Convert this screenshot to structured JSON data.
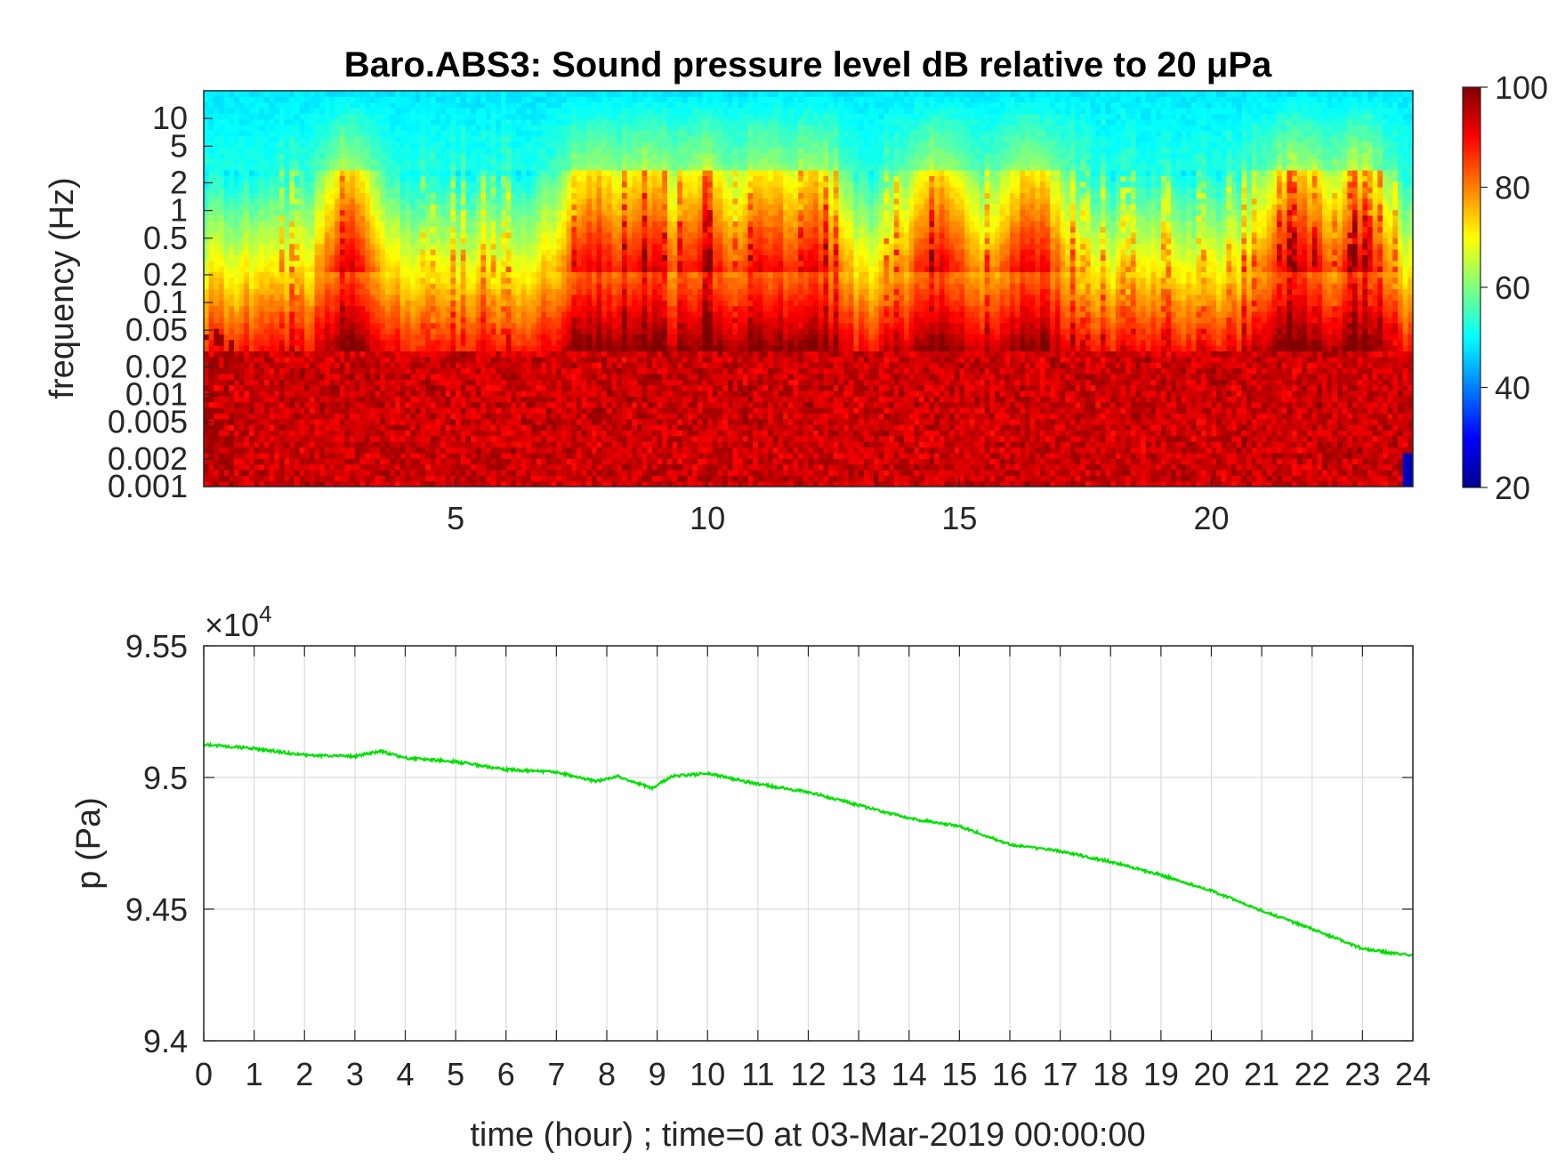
{
  "chart_data": [
    {
      "type": "heatmap",
      "title": "Baro.ABS3: Sound pressure level dB relative to 20 μPa",
      "ylabel": "frequency (Hz)",
      "yscale": "log",
      "xlim": [
        0,
        24
      ],
      "ylim": [
        0.001,
        20
      ],
      "x_ticks": [
        5,
        10,
        15,
        20
      ],
      "y_ticks": [
        "10",
        "5",
        "2",
        "1",
        "0.5",
        "0.2",
        "0.1",
        "0.05",
        "0.02",
        "0.01",
        "0.005",
        "0.002",
        "0.001"
      ],
      "y_tick_values": [
        10,
        5,
        2,
        1,
        0.5,
        0.2,
        0.1,
        0.05,
        0.02,
        0.01,
        0.005,
        0.002,
        0.001
      ],
      "colormap": "jet",
      "colorbar": {
        "ticks": [
          20,
          40,
          60,
          80,
          100
        ],
        "range": [
          20,
          100
        ]
      },
      "colors": {
        "low": "#00008f",
        "mid": "#7fff7f",
        "high": "#800000"
      },
      "level_description": "high levels (80-100 dB) at low frequencies below ~0.05 Hz, decreasing to ~50 dB above 2 Hz; broadband bursts near hours 3, 8-12, 14-17 and 21-23"
    },
    {
      "type": "line",
      "ylabel": "p (Pa)",
      "xlabel": "time (hour) ; time=0 at 03-Mar-2019 00:00:00",
      "xlim": [
        0,
        24
      ],
      "ylim": [
        94000,
        95500
      ],
      "y_exponent_label": "×10",
      "y_exponent_power": "4",
      "x_ticks": [
        0,
        1,
        2,
        3,
        4,
        5,
        6,
        7,
        8,
        9,
        10,
        11,
        12,
        13,
        14,
        15,
        16,
        17,
        18,
        19,
        20,
        21,
        22,
        23,
        24
      ],
      "y_ticks": [
        "9.4",
        "9.45",
        "9.5",
        "9.55"
      ],
      "y_tick_values": [
        94000,
        94500,
        95000,
        95500
      ],
      "grid": true,
      "series": [
        {
          "color": "#00e000",
          "x": [
            0,
            1,
            2,
            3,
            3.5,
            4,
            5,
            6,
            7,
            7.8,
            8.2,
            8.9,
            9.3,
            10,
            11,
            12,
            13,
            14,
            15,
            16,
            17,
            18,
            19,
            20,
            21,
            22,
            23,
            23.5,
            24
          ],
          "y": [
            95125,
            95110,
            95085,
            95080,
            95100,
            95075,
            95060,
            95030,
            95020,
            94985,
            95005,
            94960,
            95005,
            95015,
            94975,
            94945,
            94895,
            94845,
            94815,
            94745,
            94720,
            94680,
            94630,
            94570,
            94495,
            94425,
            94350,
            94335,
            94325
          ]
        }
      ]
    }
  ]
}
